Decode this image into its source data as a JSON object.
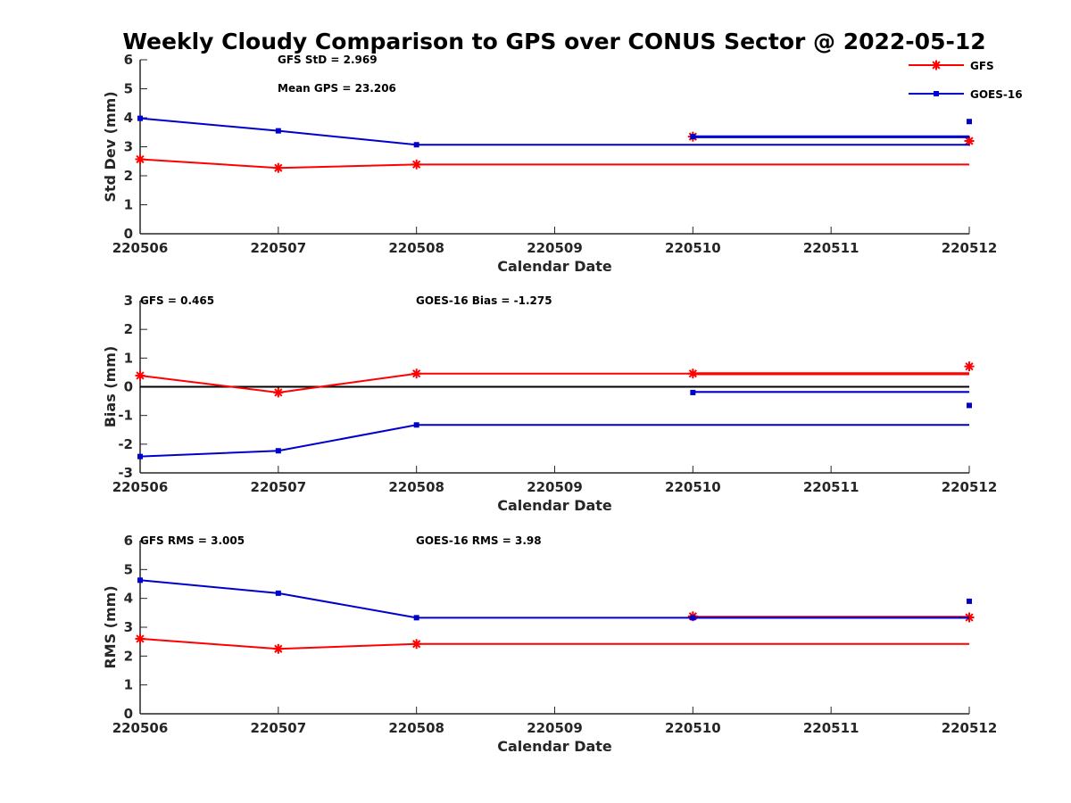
{
  "chart_data": {
    "title": "Weekly Cloudy Comparison to GPS over CONUS Sector @ 2022-05-12",
    "legend": {
      "placement": "top-right",
      "entries": [
        {
          "name": "GFS",
          "color": "#ff0000",
          "marker": "asterisk"
        },
        {
          "name": "GOES-16",
          "color": "#0000cc",
          "marker": "square"
        }
      ]
    },
    "colors": {
      "gfs": "#ff0000",
      "goes": "#0000cc",
      "axis": "#262626",
      "zero_line": "#000000"
    },
    "panels": [
      {
        "type": "line",
        "ylabel": "Std Dev (mm)",
        "xlabel": "Calendar Date",
        "ylim": [
          0,
          6
        ],
        "yticks": [
          0,
          1,
          2,
          3,
          4,
          5,
          6
        ],
        "xticks": [
          "220506",
          "220507",
          "220508",
          "220509",
          "220510",
          "220511",
          "220512"
        ],
        "grid": false,
        "annotations": [
          "GFS StD = 2.969",
          "Mean GPS = 23.206"
        ],
        "zero_line": false,
        "series": [
          {
            "name": "GFS",
            "key": "gfs",
            "x": [
              0,
              1,
              2,
              6
            ],
            "y": [
              2.57,
              2.27,
              2.39,
              2.39
            ],
            "extra_lines": [
              [
                [
                  4,
                  3.35
                ],
                [
                  6,
                  3.35
                ]
              ]
            ],
            "extra_points": [
              [
                4,
                3.35
              ],
              [
                6,
                3.2
              ]
            ]
          },
          {
            "name": "GOES-16",
            "key": "goes",
            "x": [
              0,
              1,
              2,
              6
            ],
            "y": [
              3.98,
              3.55,
              3.07,
              3.07
            ],
            "extra_lines": [
              [
                [
                  4,
                  3.33
                ],
                [
                  6,
                  3.33
                ]
              ],
              [
                [
                  4,
                  3.36
                ],
                [
                  6,
                  3.36
                ]
              ]
            ],
            "extra_points": [
              [
                4,
                3.35
              ],
              [
                6,
                3.87
              ]
            ]
          }
        ]
      },
      {
        "type": "line",
        "ylabel": "Bias (mm)",
        "xlabel": "Calendar Date",
        "ylim": [
          -3,
          3
        ],
        "yticks": [
          -3,
          -2,
          -1,
          0,
          1,
          2,
          3
        ],
        "xticks": [
          "220506",
          "220507",
          "220508",
          "220509",
          "220510",
          "220511",
          "220512"
        ],
        "grid": false,
        "annotations": [
          "GFS = 0.465",
          "GOES-16 Bias  = -1.275"
        ],
        "zero_line": true,
        "series": [
          {
            "name": "GFS",
            "key": "gfs",
            "x": [
              0,
              1,
              2,
              6
            ],
            "y": [
              0.39,
              -0.2,
              0.46,
              0.46
            ],
            "extra_lines": [
              [
                [
                  4,
                  0.47
                ],
                [
                  6,
                  0.47
                ]
              ],
              [
                [
                  4,
                  0.44
                ],
                [
                  6,
                  0.44
                ]
              ]
            ],
            "extra_points": [
              [
                4,
                0.46
              ],
              [
                6,
                0.71
              ]
            ]
          },
          {
            "name": "GOES-16",
            "key": "goes",
            "x": [
              0,
              1,
              2,
              6
            ],
            "y": [
              -2.43,
              -2.23,
              -1.33,
              -1.33
            ],
            "extra_lines": [
              [
                [
                  4,
                  -0.18
                ],
                [
                  6,
                  -0.18
                ]
              ]
            ],
            "extra_points": [
              [
                4,
                -0.2
              ],
              [
                6,
                -0.65
              ]
            ]
          }
        ]
      },
      {
        "type": "line",
        "ylabel": "RMS (mm)",
        "xlabel": "Calendar Date",
        "ylim": [
          0,
          6
        ],
        "yticks": [
          0,
          1,
          2,
          3,
          4,
          5,
          6
        ],
        "xticks": [
          "220506",
          "220507",
          "220508",
          "220509",
          "220510",
          "220511",
          "220512"
        ],
        "grid": false,
        "annotations": [
          "GFS RMS = 3.005",
          "GOES-16 RMS = 3.98"
        ],
        "zero_line": false,
        "series": [
          {
            "name": "GFS",
            "key": "gfs",
            "x": [
              0,
              1,
              2,
              6
            ],
            "y": [
              2.6,
              2.25,
              2.42,
              2.42
            ],
            "extra_lines": [
              [
                [
                  4,
                  3.36
                ],
                [
                  6,
                  3.36
                ]
              ]
            ],
            "extra_points": [
              [
                4,
                3.38
              ],
              [
                6,
                3.34
              ]
            ]
          },
          {
            "name": "GOES-16",
            "key": "goes",
            "x": [
              0,
              1,
              2,
              6
            ],
            "y": [
              4.63,
              4.18,
              3.33,
              3.33
            ],
            "extra_lines": [
              [
                [
                  4,
                  3.33
                ],
                [
                  6,
                  3.33
                ]
              ]
            ],
            "extra_points": [
              [
                4,
                3.33
              ],
              [
                6,
                3.9
              ]
            ]
          }
        ]
      }
    ]
  }
}
